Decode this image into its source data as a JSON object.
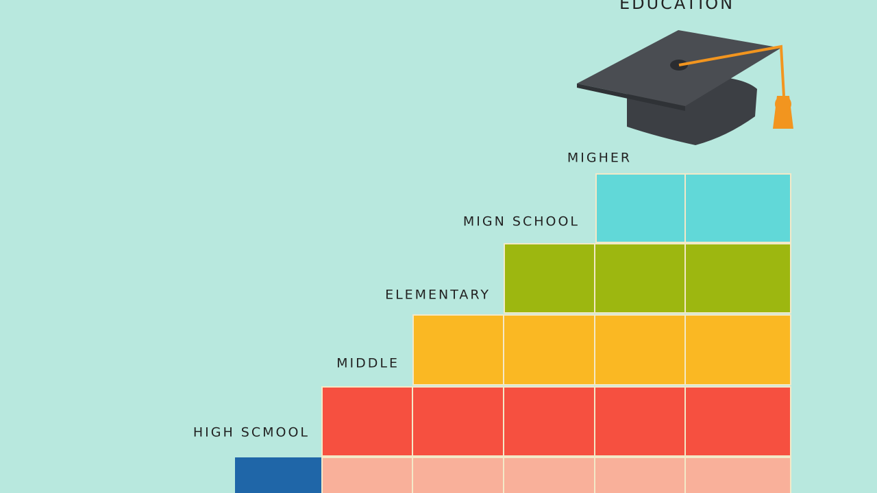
{
  "header": {
    "title": "EDUCATION"
  },
  "steps": [
    {
      "label": "MIGHER"
    },
    {
      "label": "MIGN SCHOOL"
    },
    {
      "label": "ELEMENTARY"
    },
    {
      "label": "MIDDLE"
    },
    {
      "label": "HIGH SCMOOL"
    }
  ]
}
